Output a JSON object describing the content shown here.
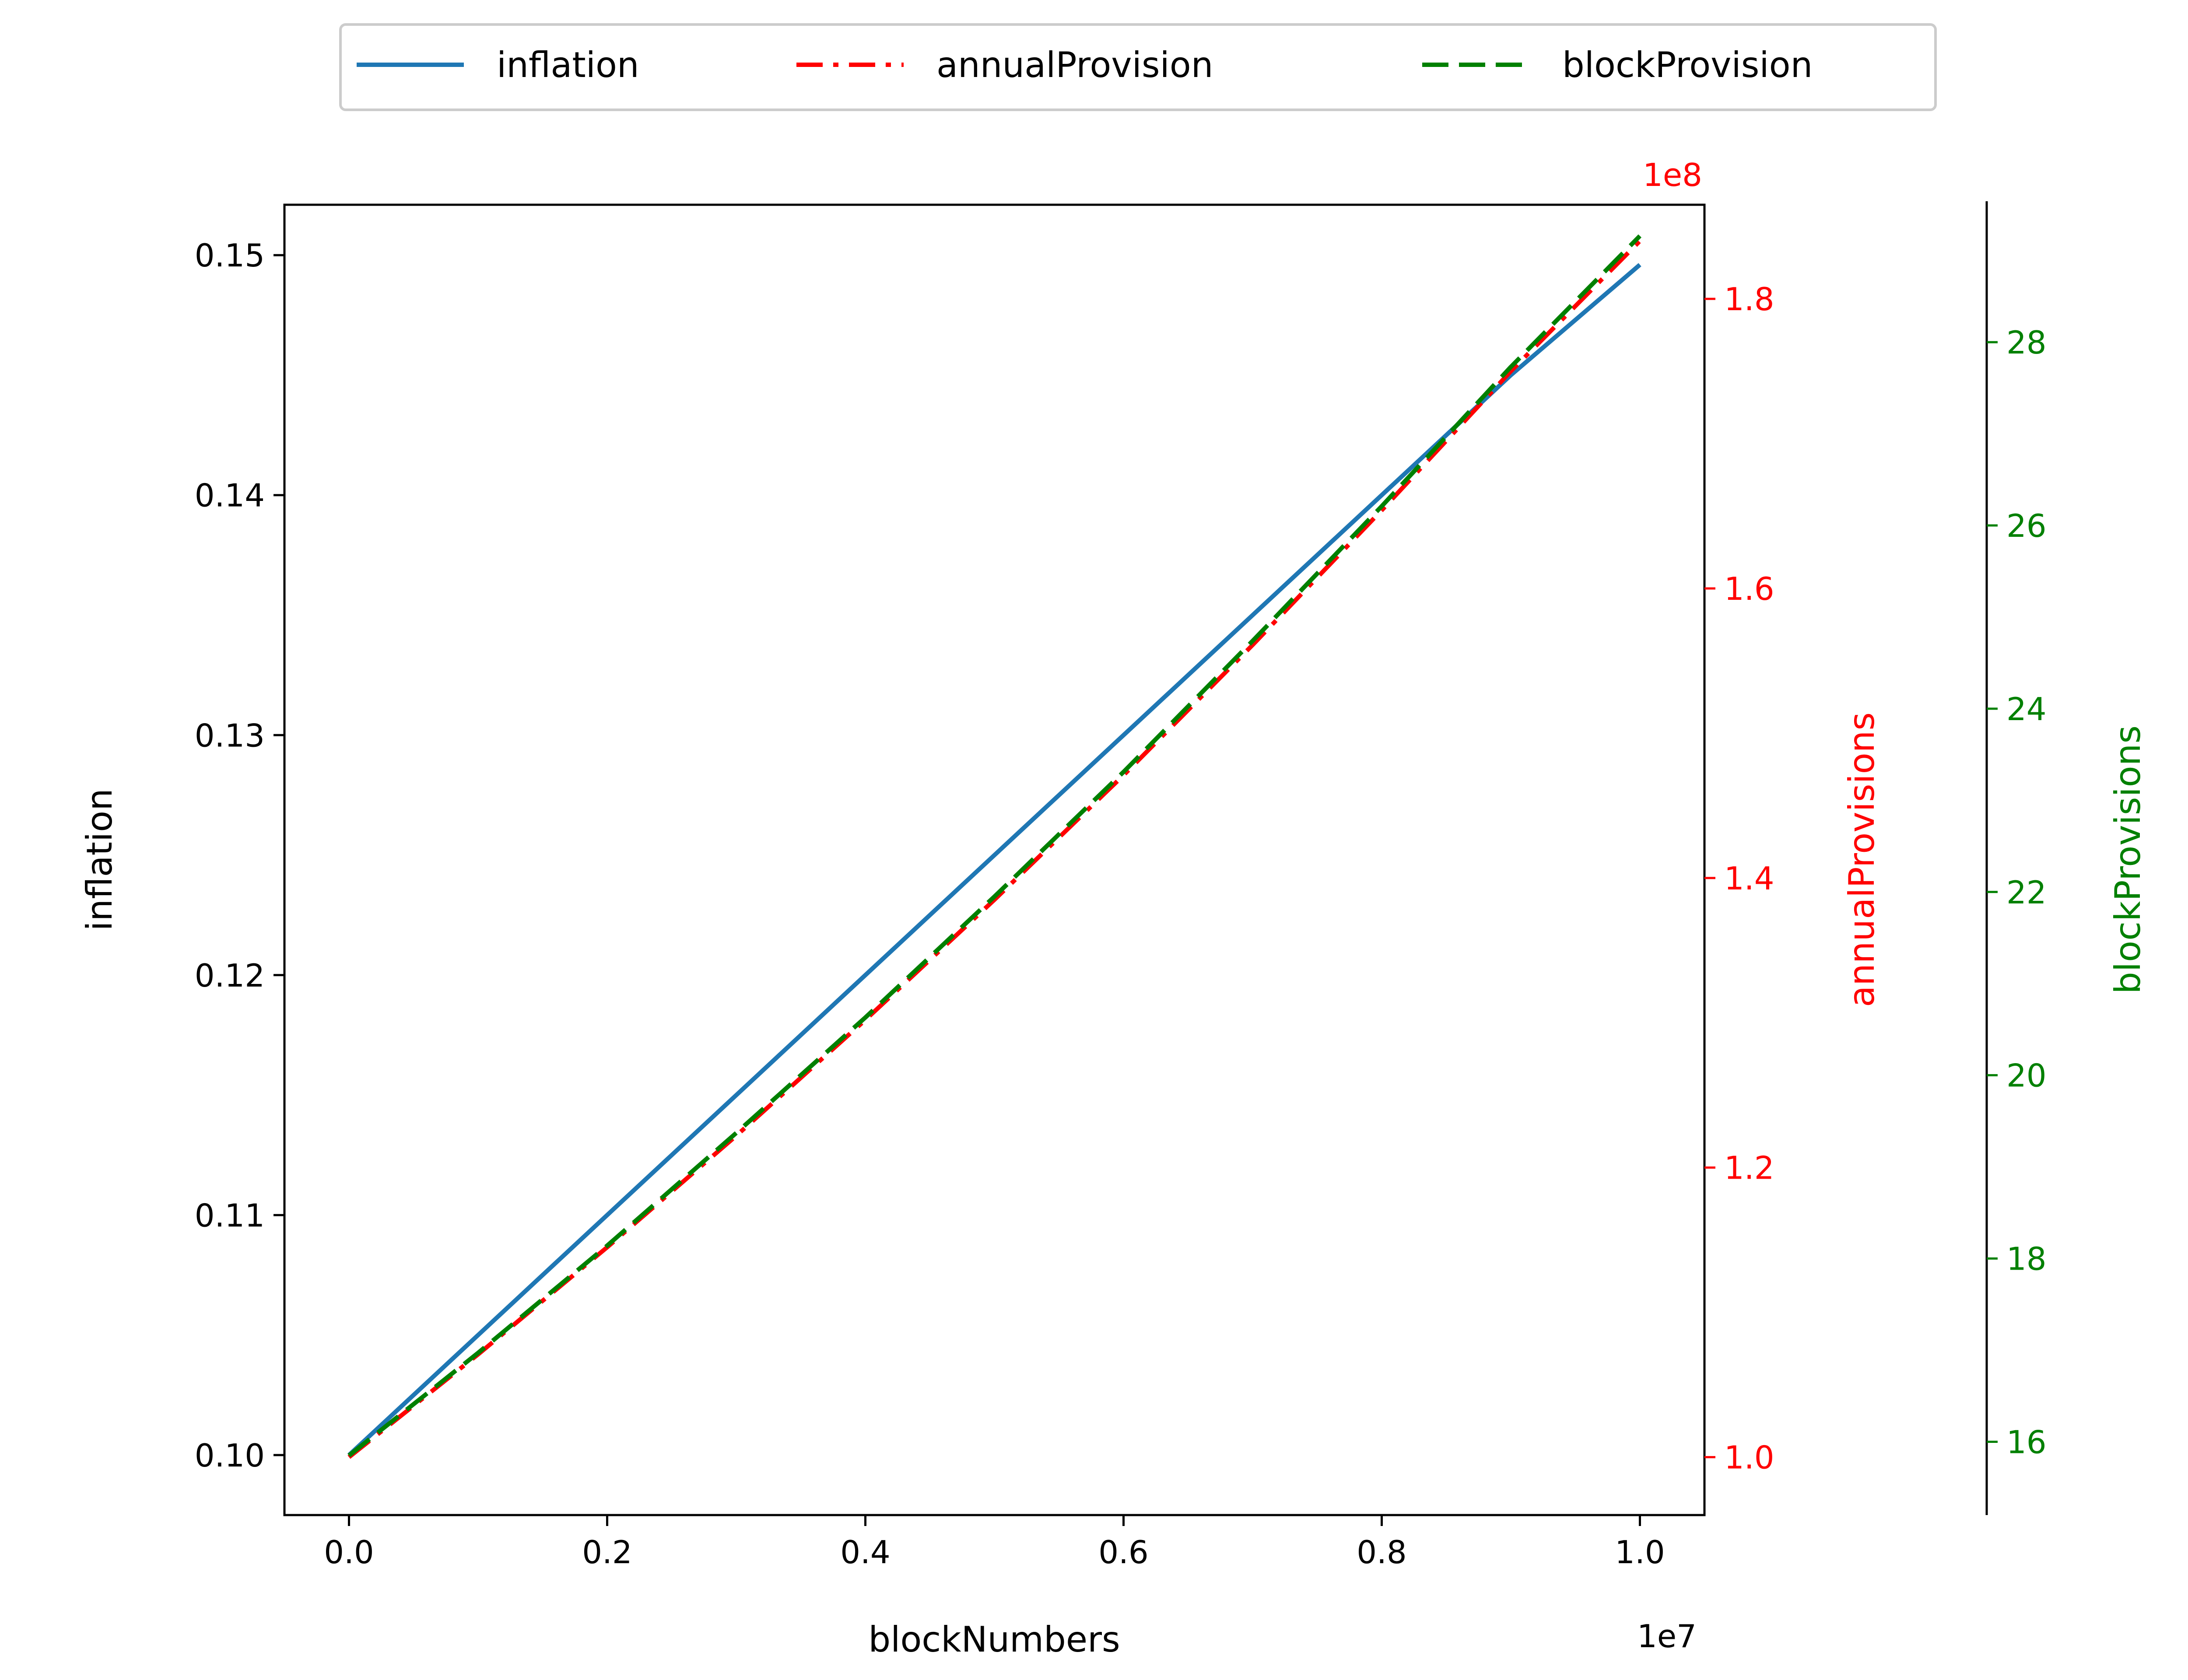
{
  "chart_data": {
    "type": "line",
    "xlabel": "blockNumbers",
    "x_offset": "1e7",
    "xlim": [
      -0.05,
      1.05
    ],
    "x_ticks": [
      "0.0",
      "0.2",
      "0.4",
      "0.6",
      "0.8",
      "1.0"
    ],
    "x_tick_values": [
      0.0,
      0.2,
      0.4,
      0.6,
      0.8,
      1.0
    ],
    "axes": [
      {
        "id": "left",
        "label": "inflation",
        "color": "#000000",
        "ylim": [
          0.0975,
          0.1521
        ],
        "ticks": [
          "0.10",
          "0.11",
          "0.12",
          "0.13",
          "0.14",
          "0.15"
        ],
        "tick_values": [
          0.1,
          0.11,
          0.12,
          0.13,
          0.14,
          0.15
        ]
      },
      {
        "id": "right1",
        "label": "annualProvisions",
        "color": "#ff0000",
        "offset_text": "1e8",
        "ylim": [
          0.96,
          1.865
        ],
        "ticks": [
          "1.0",
          "1.2",
          "1.4",
          "1.6",
          "1.8"
        ],
        "tick_values": [
          1.0,
          1.2,
          1.4,
          1.6,
          1.8
        ]
      },
      {
        "id": "right2",
        "label": "blockProvisions",
        "color": "#008000",
        "ylim": [
          15.2,
          29.5
        ],
        "ticks": [
          "16",
          "18",
          "20",
          "22",
          "24",
          "26",
          "28"
        ],
        "tick_values": [
          16,
          18,
          20,
          22,
          24,
          26,
          28
        ]
      }
    ],
    "x": [
      0.0,
      0.1,
      0.2,
      0.3,
      0.4,
      0.5,
      0.6,
      0.7,
      0.8,
      0.9,
      1.0
    ],
    "series": [
      {
        "name": "inflation",
        "axis": "left",
        "color": "#1f77b4",
        "style": "solid",
        "values": [
          0.1,
          0.105,
          0.11,
          0.115,
          0.12,
          0.125,
          0.13,
          0.135,
          0.14,
          0.145,
          0.1496
        ]
      },
      {
        "name": "annualProvision",
        "axis": "right1",
        "color": "#ff0000",
        "style": "dashdot",
        "values": [
          1.0,
          1.071,
          1.145,
          1.222,
          1.302,
          1.385,
          1.471,
          1.561,
          1.654,
          1.75,
          1.84
        ]
      },
      {
        "name": "blockProvision",
        "axis": "right2",
        "color": "#008000",
        "style": "dashed",
        "values": [
          15.85,
          16.97,
          18.14,
          19.37,
          20.63,
          21.95,
          23.31,
          24.74,
          26.21,
          27.73,
          29.16
        ]
      }
    ],
    "legend": {
      "placement": "top-center",
      "entries": [
        "inflation",
        "annualProvision",
        "blockProvision"
      ]
    },
    "grid": false
  }
}
